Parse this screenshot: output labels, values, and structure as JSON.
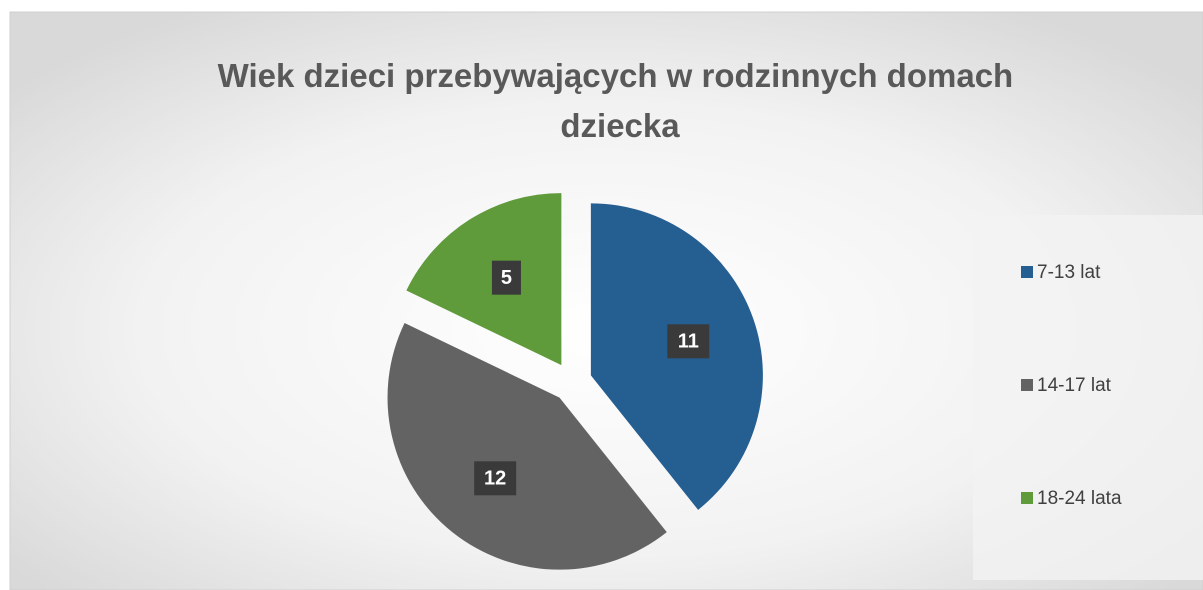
{
  "chart_data": {
    "type": "pie",
    "title": "Wiek dzieci przebywających w rodzinnych domach dziecka",
    "categories": [
      "7-13 lat",
      "14-17 lat",
      "18-24 lata"
    ],
    "values": [
      11,
      12,
      5
    ],
    "colors": [
      "#255e91",
      "#636363",
      "#5f9a3b"
    ],
    "legend": "right"
  }
}
